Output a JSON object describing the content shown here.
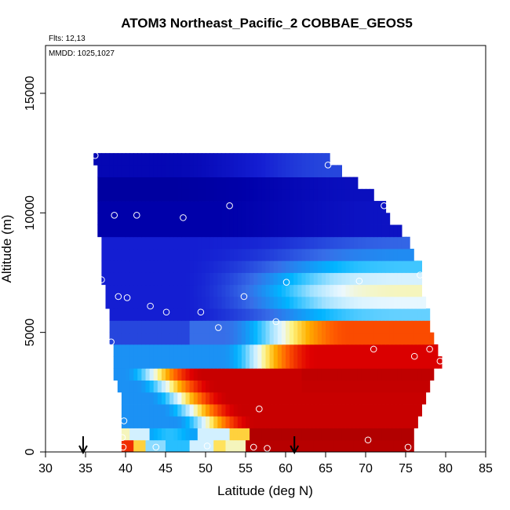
{
  "chart_data": {
    "type": "heatmap",
    "title": "ATOM3 Northeast_Pacific_2 COBBAE_GEOS5",
    "flights_label": "Flts: 12,13",
    "dates_label": "MMDD: 1025,1027",
    "xlabel": "Latitude (deg N)",
    "ylabel": "Altitude (m)",
    "xlim": [
      30,
      85
    ],
    "ylim": [
      0,
      17000
    ],
    "x_ticks": [
      30,
      35,
      40,
      45,
      50,
      55,
      60,
      65,
      70,
      75,
      80,
      85
    ],
    "y_ticks": [
      0,
      5000,
      10000,
      15000
    ],
    "x_tick_labels": [
      "30",
      "35",
      "40",
      "45",
      "50",
      "55",
      "60",
      "65",
      "70",
      "75",
      "80",
      "85"
    ],
    "y_tick_labels": [
      "0",
      "5000",
      "10000",
      "15000"
    ],
    "grid": false,
    "colormap": [
      "#000066",
      "#0000b0",
      "#2222dd",
      "#3a6ee8",
      "#00b4ff",
      "#e8f8ff",
      "#fff27a",
      "#ffb000",
      "#ff5a00",
      "#e00000",
      "#990000"
    ],
    "latitude_coverage": [
      {
        "alt": 250,
        "lat_min": 39.5,
        "lat_max": 76
      },
      {
        "alt": 750,
        "lat_min": 39.5,
        "lat_max": 76
      },
      {
        "alt": 1250,
        "lat_min": 39.5,
        "lat_max": 76.5
      },
      {
        "alt": 1750,
        "lat_min": 39.5,
        "lat_max": 77
      },
      {
        "alt": 2250,
        "lat_min": 39.5,
        "lat_max": 77.5
      },
      {
        "alt": 2750,
        "lat_min": 39,
        "lat_max": 78
      },
      {
        "alt": 3250,
        "lat_min": 38.5,
        "lat_max": 78.5
      },
      {
        "alt": 3750,
        "lat_min": 38.5,
        "lat_max": 79.5
      },
      {
        "alt": 4250,
        "lat_min": 38.5,
        "lat_max": 79
      },
      {
        "alt": 4750,
        "lat_min": 38,
        "lat_max": 78.5
      },
      {
        "alt": 5250,
        "lat_min": 38,
        "lat_max": 78
      },
      {
        "alt": 5750,
        "lat_min": 38,
        "lat_max": 78
      },
      {
        "alt": 6250,
        "lat_min": 37.5,
        "lat_max": 77.5
      },
      {
        "alt": 6750,
        "lat_min": 37.5,
        "lat_max": 77
      },
      {
        "alt": 7250,
        "lat_min": 37,
        "lat_max": 77
      },
      {
        "alt": 7750,
        "lat_min": 37,
        "lat_max": 77
      },
      {
        "alt": 8250,
        "lat_min": 37,
        "lat_max": 76
      },
      {
        "alt": 8750,
        "lat_min": 37,
        "lat_max": 75.5
      },
      {
        "alt": 9250,
        "lat_min": 36.5,
        "lat_max": 74.5
      },
      {
        "alt": 9750,
        "lat_min": 36.5,
        "lat_max": 73
      },
      {
        "alt": 10250,
        "lat_min": 36.5,
        "lat_max": 72.5
      },
      {
        "alt": 10750,
        "lat_min": 36.5,
        "lat_max": 71
      },
      {
        "alt": 11250,
        "lat_min": 36.5,
        "lat_max": 69
      },
      {
        "alt": 11750,
        "lat_min": 36.5,
        "lat_max": 67
      },
      {
        "alt": 12250,
        "lat_min": 36,
        "lat_max": 65.5
      }
    ],
    "observation_points": [
      {
        "lat": 36.2,
        "alt": 12400
      },
      {
        "lat": 65.3,
        "alt": 12000
      },
      {
        "lat": 72.3,
        "alt": 10300
      },
      {
        "lat": 53.0,
        "alt": 10300
      },
      {
        "lat": 38.6,
        "alt": 9900
      },
      {
        "lat": 41.4,
        "alt": 9900
      },
      {
        "lat": 47.2,
        "alt": 9800
      },
      {
        "lat": 37.0,
        "alt": 7200
      },
      {
        "lat": 60.1,
        "alt": 7100
      },
      {
        "lat": 69.2,
        "alt": 7150
      },
      {
        "lat": 76.8,
        "alt": 7400
      },
      {
        "lat": 39.1,
        "alt": 6500
      },
      {
        "lat": 40.2,
        "alt": 6450
      },
      {
        "lat": 54.8,
        "alt": 6500
      },
      {
        "lat": 43.1,
        "alt": 6100
      },
      {
        "lat": 45.1,
        "alt": 5850
      },
      {
        "lat": 49.4,
        "alt": 5850
      },
      {
        "lat": 58.8,
        "alt": 5450
      },
      {
        "lat": 51.6,
        "alt": 5200
      },
      {
        "lat": 38.2,
        "alt": 4600
      },
      {
        "lat": 71.0,
        "alt": 4300
      },
      {
        "lat": 78.0,
        "alt": 4300
      },
      {
        "lat": 76.1,
        "alt": 4000
      },
      {
        "lat": 79.3,
        "alt": 3800
      },
      {
        "lat": 56.7,
        "alt": 1800
      },
      {
        "lat": 39.8,
        "alt": 1300
      },
      {
        "lat": 39.6,
        "alt": 600
      },
      {
        "lat": 70.3,
        "alt": 500
      },
      {
        "lat": 39.7,
        "alt": 200
      },
      {
        "lat": 43.8,
        "alt": 200
      },
      {
        "lat": 50.2,
        "alt": 250
      },
      {
        "lat": 56.0,
        "alt": 200
      },
      {
        "lat": 57.7,
        "alt": 150
      },
      {
        "lat": 75.3,
        "alt": 200
      }
    ],
    "arrow_markers": [
      {
        "lat": 34.7,
        "direction": "down"
      },
      {
        "lat": 61.1,
        "direction": "down"
      }
    ]
  }
}
